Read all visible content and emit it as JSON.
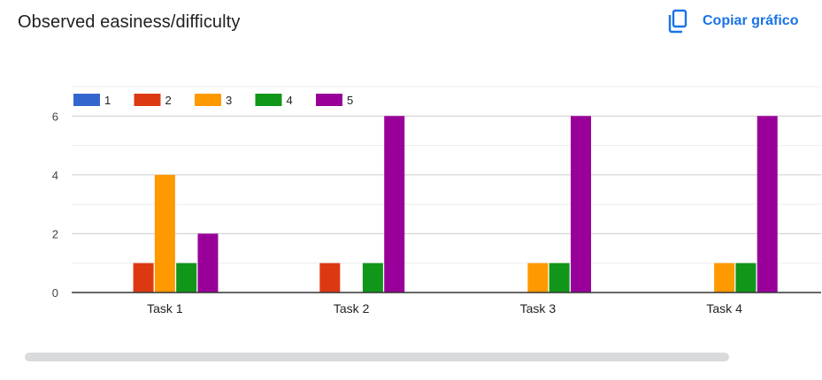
{
  "header": {
    "title": "Observed easiness/difficulty",
    "copy_label": "Copiar gráfico",
    "copy_icon": "copy-icon",
    "accent_color": "#1a73e8"
  },
  "chart_data": {
    "type": "bar",
    "title": "Observed easiness/difficulty",
    "xlabel": "",
    "ylabel": "",
    "categories": [
      "Task 1",
      "Task 2",
      "Task 3",
      "Task 4"
    ],
    "series": [
      {
        "name": "1",
        "color": "#3366cc",
        "values": [
          0,
          0,
          0,
          0
        ]
      },
      {
        "name": "2",
        "color": "#dc3912",
        "values": [
          1,
          1,
          0,
          0
        ]
      },
      {
        "name": "3",
        "color": "#ff9900",
        "values": [
          4,
          0,
          1,
          1
        ]
      },
      {
        "name": "4",
        "color": "#109618",
        "values": [
          1,
          1,
          1,
          1
        ]
      },
      {
        "name": "5",
        "color": "#990099",
        "values": [
          2,
          6,
          6,
          6
        ]
      }
    ],
    "ylim": [
      0,
      7
    ],
    "yticks": [
      0,
      2,
      4,
      6
    ],
    "grid": true,
    "legend_position": "top-left"
  }
}
